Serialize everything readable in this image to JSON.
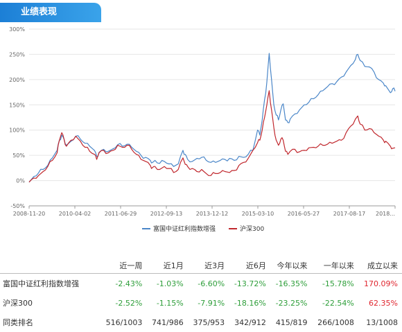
{
  "section": {
    "title": "业绩表现"
  },
  "chart_data": {
    "type": "line",
    "ylim": [
      -50,
      300
    ],
    "y_ticks": [
      "300%",
      "250%",
      "200%",
      "150%",
      "100%",
      "50%",
      "0%",
      "-50%"
    ],
    "x_ticks": [
      "2008-11-20",
      "2010-04-02",
      "2011-06-29",
      "2012-09-13",
      "2013-12-12",
      "2015-03-10",
      "2016-05-27",
      "2017-08-17",
      "2018..."
    ],
    "grid": true,
    "legend_position": "bottom",
    "series": [
      {
        "name": "富国中证红利指数增强",
        "color": "#4a86c8",
        "values": [
          [
            0,
            -3
          ],
          [
            2,
            8
          ],
          [
            4,
            15
          ],
          [
            6,
            22
          ],
          [
            8,
            30
          ],
          [
            10,
            45
          ],
          [
            12,
            60
          ],
          [
            13,
            80
          ],
          [
            14,
            90
          ],
          [
            15,
            82
          ],
          [
            16,
            70
          ],
          [
            18,
            78
          ],
          [
            20,
            88
          ],
          [
            22,
            82
          ],
          [
            24,
            74
          ],
          [
            26,
            68
          ],
          [
            28,
            60
          ],
          [
            29,
            48
          ],
          [
            30,
            56
          ],
          [
            32,
            62
          ],
          [
            34,
            58
          ],
          [
            36,
            63
          ],
          [
            38,
            71
          ],
          [
            40,
            68
          ],
          [
            42,
            72
          ],
          [
            44,
            66
          ],
          [
            46,
            58
          ],
          [
            48,
            50
          ],
          [
            50,
            46
          ],
          [
            52,
            40
          ],
          [
            53,
            36
          ],
          [
            54,
            40
          ],
          [
            56,
            34
          ],
          [
            58,
            38
          ],
          [
            60,
            33
          ],
          [
            62,
            28
          ],
          [
            64,
            33
          ],
          [
            66,
            60
          ],
          [
            67,
            52
          ],
          [
            68,
            42
          ],
          [
            70,
            38
          ],
          [
            72,
            44
          ],
          [
            74,
            46
          ],
          [
            76,
            40
          ],
          [
            78,
            36
          ],
          [
            80,
            36
          ],
          [
            82,
            40
          ],
          [
            84,
            42
          ],
          [
            86,
            44
          ],
          [
            88,
            40
          ],
          [
            90,
            48
          ],
          [
            92,
            46
          ],
          [
            94,
            52
          ],
          [
            96,
            60
          ],
          [
            98,
            100
          ],
          [
            99,
            90
          ],
          [
            100,
            120
          ],
          [
            101,
            160
          ],
          [
            102,
            195
          ],
          [
            103,
            252
          ],
          [
            104,
            200
          ],
          [
            105,
            150
          ],
          [
            106,
            130
          ],
          [
            107,
            120
          ],
          [
            108,
            140
          ],
          [
            109,
            152
          ],
          [
            110,
            120
          ],
          [
            111,
            115
          ],
          [
            112,
            122
          ],
          [
            114,
            132
          ],
          [
            116,
            140
          ],
          [
            118,
            150
          ],
          [
            120,
            155
          ],
          [
            122,
            162
          ],
          [
            124,
            170
          ],
          [
            126,
            178
          ],
          [
            128,
            186
          ],
          [
            130,
            192
          ],
          [
            132,
            196
          ],
          [
            134,
            205
          ],
          [
            136,
            215
          ],
          [
            138,
            228
          ],
          [
            140,
            240
          ],
          [
            141,
            250
          ],
          [
            142,
            238
          ],
          [
            144,
            226
          ],
          [
            146,
            225
          ],
          [
            148,
            215
          ],
          [
            150,
            200
          ],
          [
            152,
            193
          ],
          [
            153,
            188
          ],
          [
            155,
            174
          ],
          [
            156,
            182
          ],
          [
            157,
            177
          ]
        ]
      },
      {
        "name": "沪深300",
        "color": "#c0272d",
        "values": [
          [
            0,
            -3
          ],
          [
            2,
            5
          ],
          [
            4,
            10
          ],
          [
            6,
            18
          ],
          [
            8,
            28
          ],
          [
            10,
            40
          ],
          [
            12,
            55
          ],
          [
            13,
            80
          ],
          [
            14,
            95
          ],
          [
            15,
            82
          ],
          [
            16,
            68
          ],
          [
            18,
            80
          ],
          [
            20,
            88
          ],
          [
            22,
            78
          ],
          [
            24,
            66
          ],
          [
            26,
            58
          ],
          [
            28,
            52
          ],
          [
            29,
            42
          ],
          [
            30,
            55
          ],
          [
            32,
            60
          ],
          [
            34,
            55
          ],
          [
            36,
            60
          ],
          [
            38,
            70
          ],
          [
            40,
            66
          ],
          [
            42,
            70
          ],
          [
            44,
            62
          ],
          [
            46,
            52
          ],
          [
            48,
            42
          ],
          [
            50,
            38
          ],
          [
            52,
            30
          ],
          [
            53,
            26
          ],
          [
            54,
            28
          ],
          [
            56,
            22
          ],
          [
            58,
            28
          ],
          [
            60,
            24
          ],
          [
            62,
            16
          ],
          [
            64,
            22
          ],
          [
            66,
            45
          ],
          [
            67,
            32
          ],
          [
            68,
            28
          ],
          [
            70,
            24
          ],
          [
            72,
            18
          ],
          [
            74,
            22
          ],
          [
            76,
            14
          ],
          [
            78,
            10
          ],
          [
            80,
            14
          ],
          [
            82,
            16
          ],
          [
            84,
            18
          ],
          [
            86,
            16
          ],
          [
            88,
            20
          ],
          [
            90,
            30
          ],
          [
            92,
            36
          ],
          [
            94,
            44
          ],
          [
            96,
            60
          ],
          [
            98,
            75
          ],
          [
            99,
            80
          ],
          [
            100,
            100
          ],
          [
            101,
            125
          ],
          [
            102,
            150
          ],
          [
            103,
            178
          ],
          [
            104,
            140
          ],
          [
            105,
            105
          ],
          [
            106,
            80
          ],
          [
            107,
            70
          ],
          [
            108,
            82
          ],
          [
            109,
            80
          ],
          [
            110,
            58
          ],
          [
            111,
            52
          ],
          [
            112,
            58
          ],
          [
            114,
            62
          ],
          [
            116,
            57
          ],
          [
            118,
            60
          ],
          [
            120,
            65
          ],
          [
            122,
            66
          ],
          [
            124,
            68
          ],
          [
            126,
            70
          ],
          [
            128,
            72
          ],
          [
            130,
            74
          ],
          [
            132,
            78
          ],
          [
            134,
            80
          ],
          [
            136,
            95
          ],
          [
            138,
            108
          ],
          [
            140,
            122
          ],
          [
            141,
            128
          ],
          [
            142,
            112
          ],
          [
            144,
            100
          ],
          [
            146,
            103
          ],
          [
            148,
            95
          ],
          [
            150,
            88
          ],
          [
            152,
            80
          ],
          [
            153,
            78
          ],
          [
            155,
            68
          ],
          [
            156,
            64
          ],
          [
            157,
            65
          ]
        ]
      }
    ]
  },
  "table": {
    "columns": [
      "",
      "近一周",
      "近1月",
      "近3月",
      "近6月",
      "今年以来",
      "一年以来",
      "成立以来"
    ],
    "rows": [
      {
        "name": "富国中证红利指数增强",
        "values": [
          "-2.43%",
          "-1.03%",
          "-6.60%",
          "-13.72%",
          "-16.35%",
          "-15.78%",
          "170.09%"
        ]
      },
      {
        "name": "沪深300",
        "values": [
          "-2.52%",
          "-1.15%",
          "-7.91%",
          "-18.16%",
          "-23.25%",
          "-22.54%",
          "62.35%"
        ]
      },
      {
        "name": "同类排名",
        "values": [
          "516/1003",
          "741/986",
          "375/953",
          "342/912",
          "415/819",
          "266/1008",
          "13/1008"
        ]
      }
    ]
  }
}
